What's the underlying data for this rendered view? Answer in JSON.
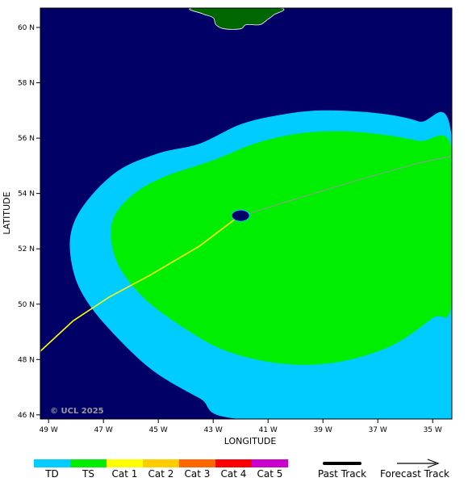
{
  "map": {
    "copyright": "© UCL 2025",
    "xlabel": "LONGITUDE",
    "ylabel": "LATITUDE",
    "lon_range": [
      -49.3,
      -34.3
    ],
    "lat_range": [
      45.85,
      60.7
    ],
    "lon_ticks": [
      {
        "value": -49,
        "label": "49 W"
      },
      {
        "value": -47,
        "label": "47 W"
      },
      {
        "value": -45,
        "label": "45 W"
      },
      {
        "value": -43,
        "label": "43 W"
      },
      {
        "value": -41,
        "label": "41 W"
      },
      {
        "value": -39,
        "label": "39 W"
      },
      {
        "value": -37,
        "label": "37 W"
      },
      {
        "value": -35,
        "label": "35 W"
      }
    ],
    "lat_ticks": [
      {
        "value": 46,
        "label": "46 N"
      },
      {
        "value": 48,
        "label": "48 N"
      },
      {
        "value": 50,
        "label": "50 N"
      },
      {
        "value": 52,
        "label": "52 N"
      },
      {
        "value": 54,
        "label": "54 N"
      },
      {
        "value": 56,
        "label": "56 N"
      },
      {
        "value": 58,
        "label": "58 N"
      },
      {
        "value": 60,
        "label": "60 N"
      }
    ],
    "colors": {
      "ocean": "#000066",
      "land": "#006600",
      "td": "#00ccff",
      "ts": "#00ee00",
      "track_past": "#ffff00",
      "track_forecast": "#999999",
      "eye": "#000066"
    },
    "past_track": [
      {
        "lon": -49.3,
        "lat": 48.3
      },
      {
        "lon": -48.1,
        "lat": 49.4
      },
      {
        "lon": -46.8,
        "lat": 50.25
      },
      {
        "lon": -45.3,
        "lat": 51.05
      },
      {
        "lon": -43.5,
        "lat": 52.1
      },
      {
        "lon": -42.1,
        "lat": 53.15
      }
    ],
    "forecast_track": [
      {
        "lon": -42.1,
        "lat": 53.15
      },
      {
        "lon": -40.0,
        "lat": 53.8
      },
      {
        "lon": -37.5,
        "lat": 54.55
      },
      {
        "lon": -35.5,
        "lat": 55.1
      },
      {
        "lon": -34.3,
        "lat": 55.35
      }
    ],
    "storm_center": {
      "lon": -42.0,
      "lat": 53.2
    },
    "td_wind_field": [
      {
        "lon": -34.3,
        "lat": 56.0
      },
      {
        "lon": -35.5,
        "lat": 56.6
      },
      {
        "lon": -37.0,
        "lat": 56.9
      },
      {
        "lon": -39.0,
        "lat": 57.0
      },
      {
        "lon": -40.5,
        "lat": 56.85
      },
      {
        "lon": -42.0,
        "lat": 56.5
      },
      {
        "lon": -43.5,
        "lat": 55.8
      },
      {
        "lon": -45.0,
        "lat": 55.45
      },
      {
        "lon": -46.5,
        "lat": 54.8
      },
      {
        "lon": -47.7,
        "lat": 53.6
      },
      {
        "lon": -48.2,
        "lat": 52.5
      },
      {
        "lon": -48.1,
        "lat": 51.2
      },
      {
        "lon": -47.6,
        "lat": 50.1
      },
      {
        "lon": -46.6,
        "lat": 48.9
      },
      {
        "lon": -45.2,
        "lat": 47.6
      },
      {
        "lon": -43.5,
        "lat": 46.6
      },
      {
        "lon": -42.0,
        "lat": 45.85
      },
      {
        "lon": -34.3,
        "lat": 45.85
      }
    ],
    "ts_wind_field": [
      {
        "lon": -34.3,
        "lat": 55.6
      },
      {
        "lon": -35.5,
        "lat": 55.9
      },
      {
        "lon": -37.0,
        "lat": 56.15
      },
      {
        "lon": -38.5,
        "lat": 56.25
      },
      {
        "lon": -40.0,
        "lat": 56.15
      },
      {
        "lon": -41.5,
        "lat": 55.8
      },
      {
        "lon": -43.0,
        "lat": 55.2
      },
      {
        "lon": -44.8,
        "lat": 54.6
      },
      {
        "lon": -46.0,
        "lat": 53.9
      },
      {
        "lon": -46.7,
        "lat": 52.9
      },
      {
        "lon": -46.5,
        "lat": 51.5
      },
      {
        "lon": -45.5,
        "lat": 50.2
      },
      {
        "lon": -44.0,
        "lat": 49.1
      },
      {
        "lon": -42.5,
        "lat": 48.3
      },
      {
        "lon": -40.5,
        "lat": 47.85
      },
      {
        "lon": -38.5,
        "lat": 47.9
      },
      {
        "lon": -36.5,
        "lat": 48.5
      },
      {
        "lon": -35.0,
        "lat": 49.5
      },
      {
        "lon": -34.3,
        "lat": 50.1
      }
    ],
    "land_outline": [
      {
        "lon": -43.7,
        "lat": 60.7
      },
      {
        "lon": -43.4,
        "lat": 60.5
      },
      {
        "lon": -43.0,
        "lat": 60.35
      },
      {
        "lon": -42.9,
        "lat": 60.1
      },
      {
        "lon": -42.6,
        "lat": 59.95
      },
      {
        "lon": -42.0,
        "lat": 59.95
      },
      {
        "lon": -41.8,
        "lat": 60.1
      },
      {
        "lon": -41.3,
        "lat": 60.1
      },
      {
        "lon": -41.0,
        "lat": 60.3
      },
      {
        "lon": -40.8,
        "lat": 60.45
      },
      {
        "lon": -40.6,
        "lat": 60.7
      }
    ]
  },
  "legend": {
    "categories": [
      {
        "label": "TD",
        "color": "#00ccff"
      },
      {
        "label": "TS",
        "color": "#00ee00"
      },
      {
        "label": "Cat 1",
        "color": "#ffff00"
      },
      {
        "label": "Cat 2",
        "color": "#ffcc00"
      },
      {
        "label": "Cat 3",
        "color": "#ff6600"
      },
      {
        "label": "Cat 4",
        "color": "#ff0000"
      },
      {
        "label": "Cat 5",
        "color": "#cc00cc"
      }
    ],
    "past_track_label": "Past Track",
    "forecast_track_label": "Forecast Track"
  }
}
